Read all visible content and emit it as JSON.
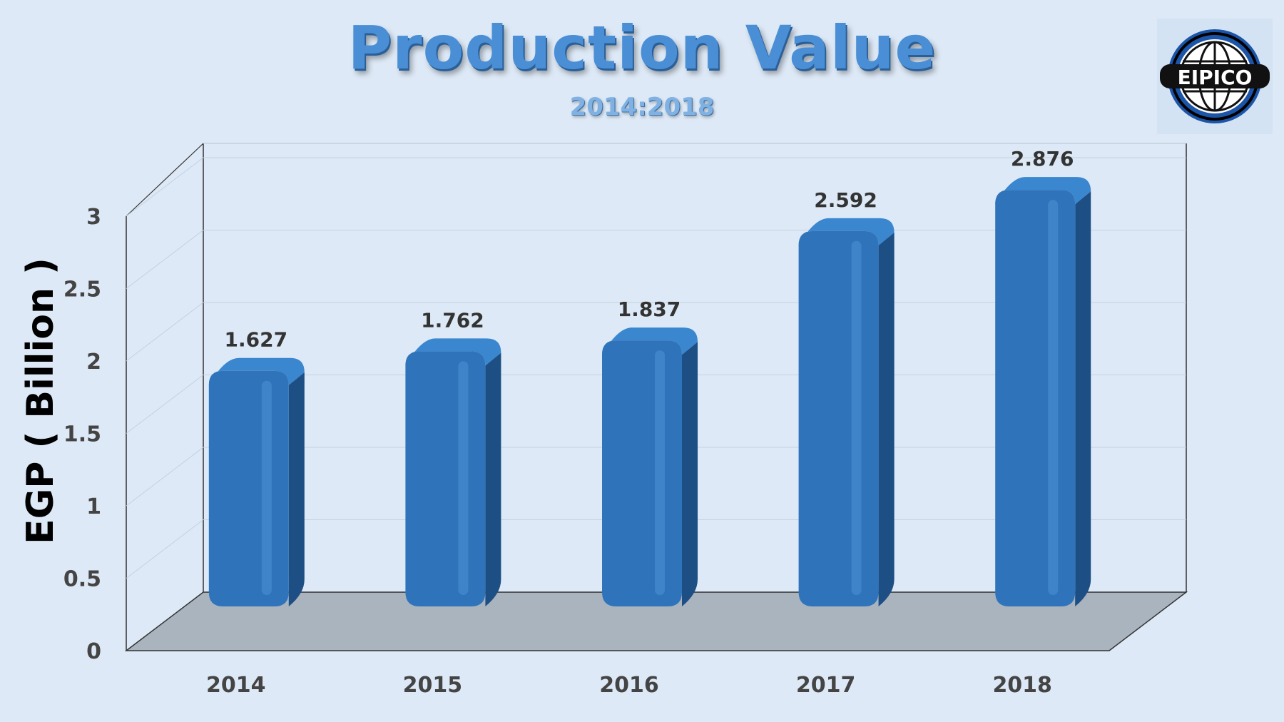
{
  "chart_data": {
    "type": "bar",
    "title": "Production Value",
    "subtitle": "2014:2018",
    "ylabel": "EGP ( Billion )",
    "ylim": [
      0,
      3
    ],
    "yticks": [
      "0",
      "0.5",
      "1",
      "1.5",
      "2",
      "2.5",
      "3"
    ],
    "categories": [
      "2014",
      "2015",
      "2016",
      "2017",
      "2018"
    ],
    "values": [
      1.627,
      1.762,
      1.837,
      2.592,
      2.876
    ],
    "data_labels": [
      "1.627",
      "1.762",
      "1.837",
      "2.592",
      "2.876"
    ],
    "grid": true,
    "legend": "none"
  },
  "logo": {
    "text": "EIPICO"
  },
  "colors": {
    "bar_front": "#2f74ba",
    "bar_side": "#1d4f85",
    "floor": "#a9b4bf",
    "background": "#dde9f6"
  }
}
